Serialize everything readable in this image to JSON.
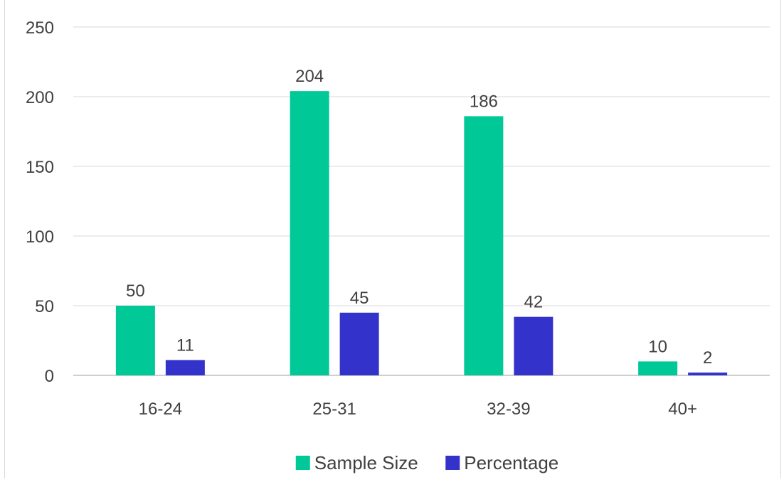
{
  "chart_data": {
    "type": "bar",
    "categories": [
      "16-24",
      "25-31",
      "32-39",
      "40+"
    ],
    "series": [
      {
        "name": "Sample Size",
        "values": [
          50,
          204,
          186,
          10
        ],
        "color": "#00C896"
      },
      {
        "name": "Percentage",
        "values": [
          11,
          45,
          42,
          2
        ],
        "color": "#3333CC"
      }
    ],
    "ylim": [
      0,
      250
    ],
    "yticks": [
      0,
      50,
      100,
      150,
      200,
      250
    ],
    "grid": true,
    "data_labels": true,
    "legend": "bottom",
    "gridline_color": "#d9d9d9",
    "axis_color": "#bfbfbf"
  }
}
